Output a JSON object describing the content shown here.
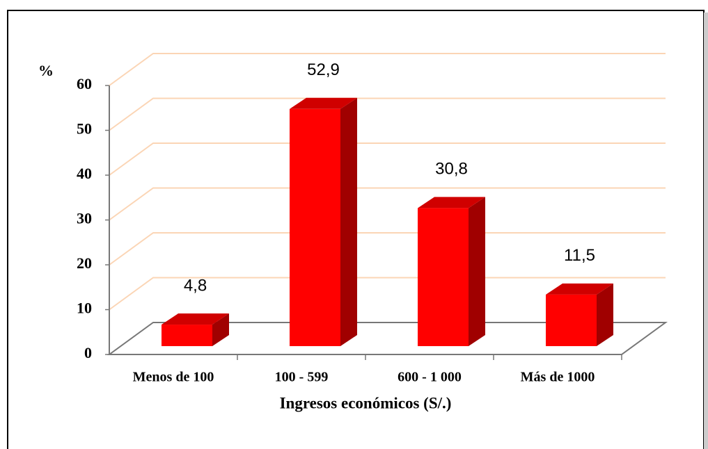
{
  "chart_data": {
    "type": "bar3d",
    "y_label": "%",
    "x_label": "Ingresos económicos (S/.)",
    "categories": [
      "Menos de 100",
      "100 - 599",
      "600 - 1 000",
      "Más de 1000"
    ],
    "values": [
      4.8,
      52.9,
      30.8,
      11.5
    ],
    "value_labels": [
      "4,8",
      "52,9",
      "30,8",
      "11,5"
    ],
    "color": "#ff0000",
    "ylim": [
      0,
      60
    ],
    "yticks": [
      0,
      10,
      20,
      30,
      40,
      50,
      60
    ],
    "grid": true
  }
}
